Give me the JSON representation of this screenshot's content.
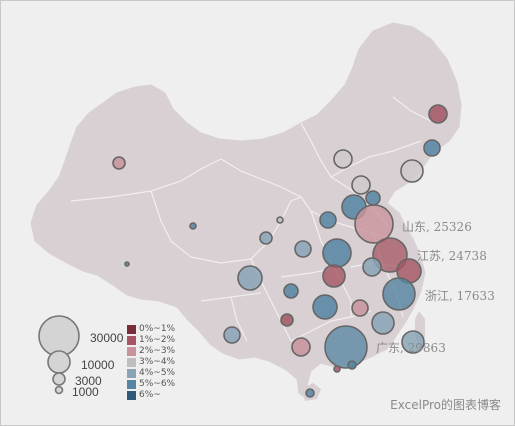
{
  "annotations": [
    {
      "name": "山东",
      "value": "25326"
    },
    {
      "name": "江苏",
      "value": "24738"
    },
    {
      "name": "浙江",
      "value": "17633"
    },
    {
      "name": "广东",
      "value": "29863"
    }
  ],
  "size_legend": [
    "30000",
    "10000",
    "3000",
    "1000"
  ],
  "color_legend": [
    {
      "label": "0%~1%",
      "color": "#7a2c3a"
    },
    {
      "label": "1%~2%",
      "color": "#a55563"
    },
    {
      "label": "2%~3%",
      "color": "#c9939b"
    },
    {
      "label": "3%~4%",
      "color": "#bebebe"
    },
    {
      "label": "4%~5%",
      "color": "#8aa4b6"
    },
    {
      "label": "5%~6%",
      "color": "#5585a3"
    },
    {
      "label": "6%~",
      "color": "#2f5a7a"
    }
  ],
  "branding": "ExcelPro的图表博客",
  "colors": {
    "land": "#d8d0d3",
    "background": "#efefef",
    "border": "#f2eef0"
  }
}
